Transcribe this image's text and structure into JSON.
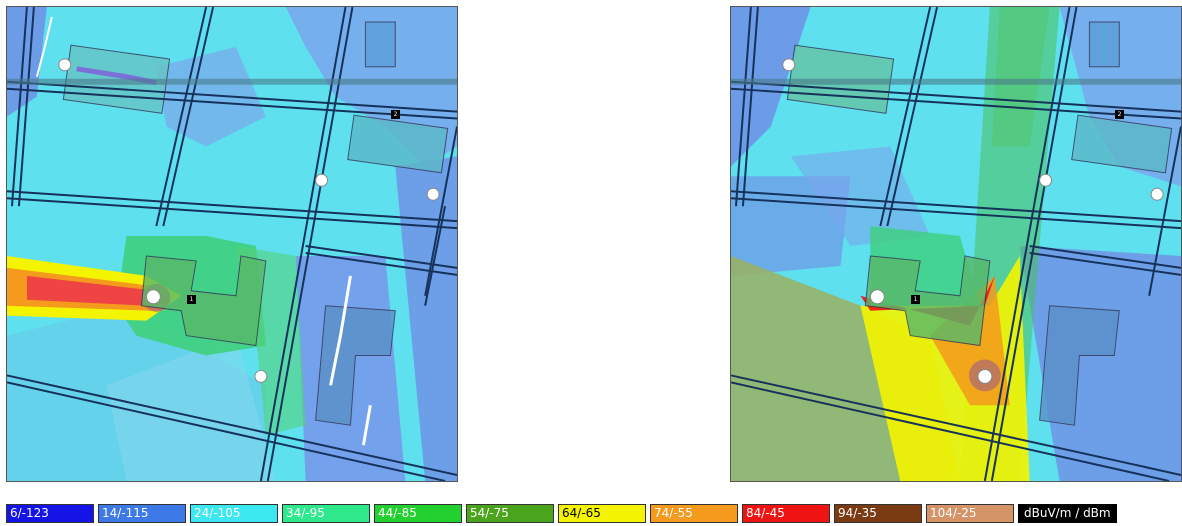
{
  "legend": {
    "items": [
      {
        "label": "6/-123",
        "color": "#1414e6",
        "text_color": "#ffffff"
      },
      {
        "label": "14/-115",
        "color": "#3d7ae8",
        "text_color": "#ffffff"
      },
      {
        "label": "24/-105",
        "color": "#3ce8f0",
        "text_color": "#ffffff"
      },
      {
        "label": "34/-95",
        "color": "#2ee88c",
        "text_color": "#ffffff"
      },
      {
        "label": "44/-85",
        "color": "#22d030",
        "text_color": "#ffffff"
      },
      {
        "label": "54/-75",
        "color": "#4aa41c",
        "text_color": "#ffffff"
      },
      {
        "label": "64/-65",
        "color": "#f4f400",
        "text_color": "#000000"
      },
      {
        "label": "74/-55",
        "color": "#f49a1c",
        "text_color": "#ffffff"
      },
      {
        "label": "84/-45",
        "color": "#ee1414",
        "text_color": "#ffffff"
      },
      {
        "label": "94/-35",
        "color": "#7a3a12",
        "text_color": "#ffffff"
      },
      {
        "label": "104/-25",
        "color": "#d49468",
        "text_color": "#ffffff"
      }
    ],
    "unit": "dBuV/m / dBm"
  },
  "maps": {
    "left": {
      "markers": [
        "1",
        "2"
      ]
    },
    "right": {
      "markers": [
        "1",
        "2"
      ]
    }
  }
}
